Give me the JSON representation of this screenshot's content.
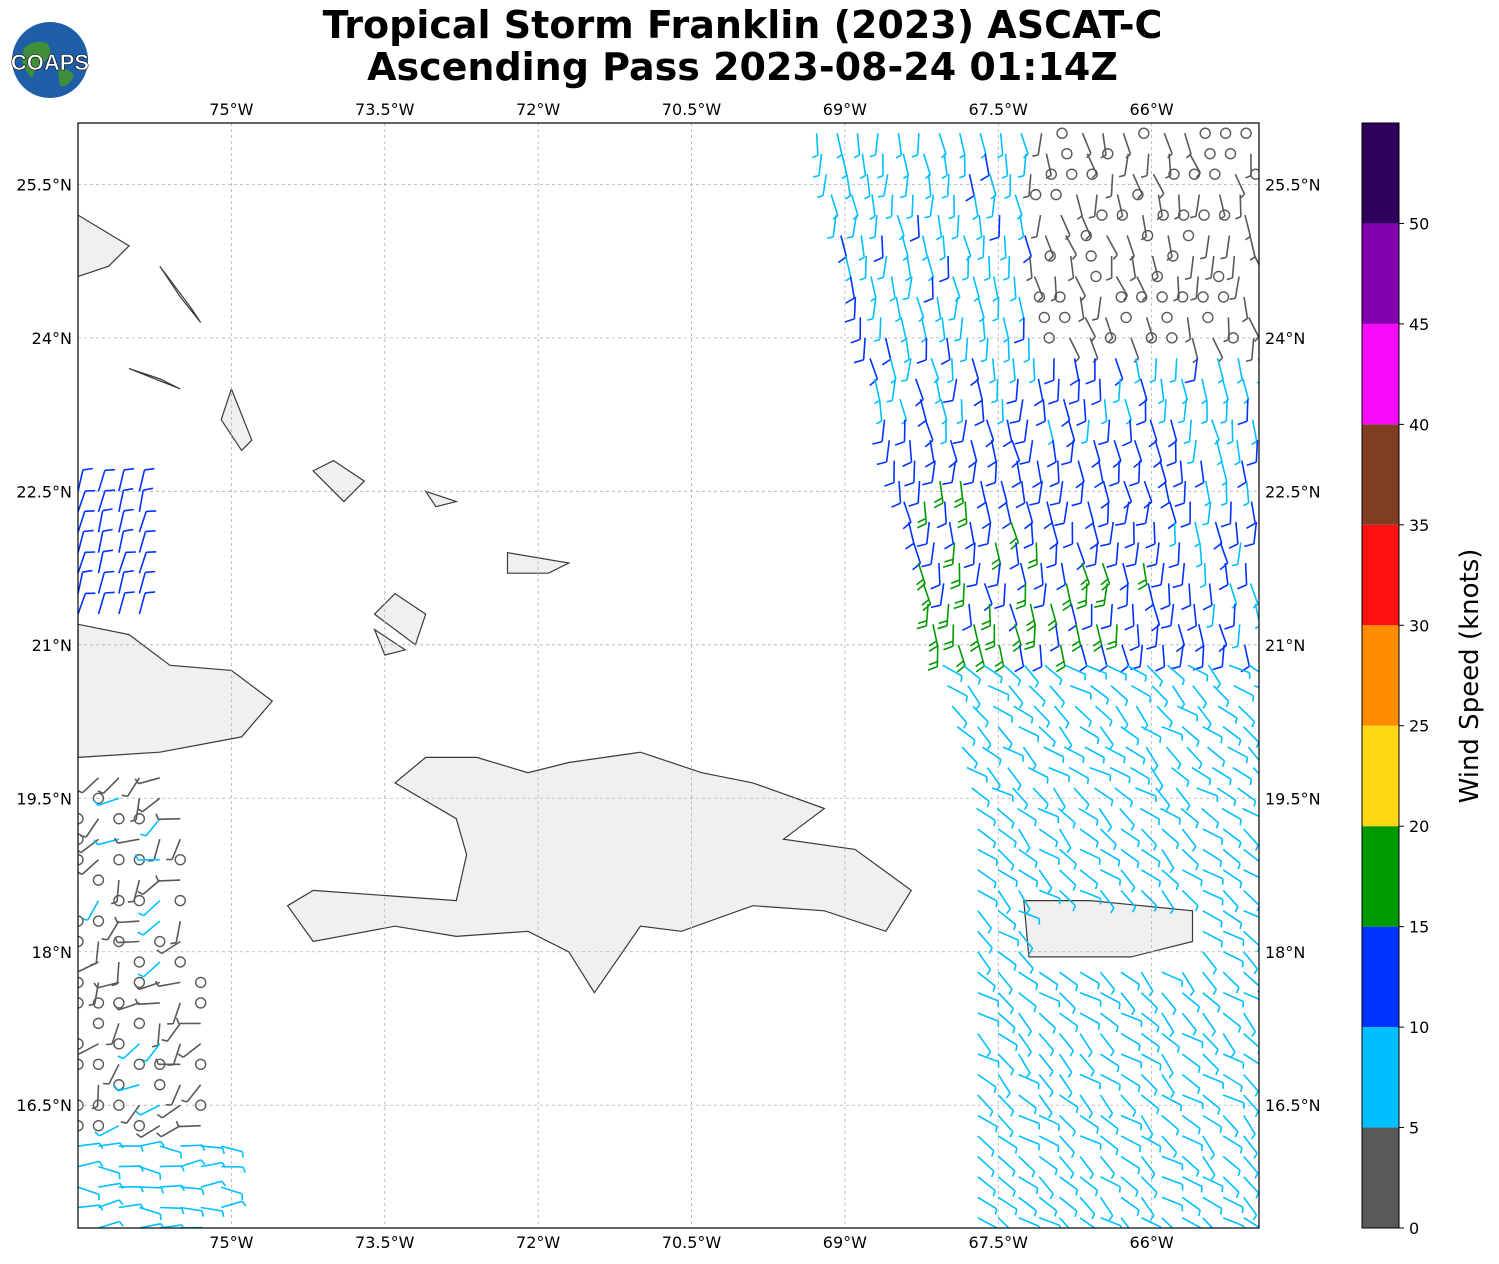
{
  "title": {
    "line1": "Tropical Storm Franklin (2023) ASCAT-C",
    "line2": "Ascending Pass 2023-08-24 01:14Z"
  },
  "logo": {
    "text": "COAPS"
  },
  "map": {
    "lon_range": [
      -76.5,
      -64.95
    ],
    "lat_range": [
      15.3,
      26.1
    ],
    "lon_ticks": [
      {
        "value": -75.0,
        "label": "75°W"
      },
      {
        "value": -73.5,
        "label": "73.5°W"
      },
      {
        "value": -72.0,
        "label": "72°W"
      },
      {
        "value": -70.5,
        "label": "70.5°W"
      },
      {
        "value": -69.0,
        "label": "69°W"
      },
      {
        "value": -67.5,
        "label": "67.5°W"
      },
      {
        "value": -66.0,
        "label": "66°W"
      }
    ],
    "lat_ticks": [
      {
        "value": 25.5,
        "label": "25.5°N"
      },
      {
        "value": 24.0,
        "label": "24°N"
      },
      {
        "value": 22.5,
        "label": "22.5°N"
      },
      {
        "value": 21.0,
        "label": "21°N"
      },
      {
        "value": 19.5,
        "label": "19.5°N"
      },
      {
        "value": 18.0,
        "label": "18°N"
      },
      {
        "value": 16.5,
        "label": "16.5°N"
      }
    ],
    "gridlines": true,
    "land": [
      {
        "name": "cuba-east",
        "pts": [
          [
            -76.5,
            21.2
          ],
          [
            -76.0,
            21.1
          ],
          [
            -75.6,
            20.8
          ],
          [
            -75.0,
            20.75
          ],
          [
            -74.6,
            20.45
          ],
          [
            -74.9,
            20.1
          ],
          [
            -75.7,
            19.95
          ],
          [
            -76.5,
            19.9
          ]
        ]
      },
      {
        "name": "hispaniola",
        "pts": [
          [
            -74.45,
            18.45
          ],
          [
            -74.2,
            18.6
          ],
          [
            -73.5,
            18.55
          ],
          [
            -72.8,
            18.5
          ],
          [
            -72.7,
            18.95
          ],
          [
            -72.8,
            19.3
          ],
          [
            -73.4,
            19.65
          ],
          [
            -73.1,
            19.9
          ],
          [
            -72.6,
            19.9
          ],
          [
            -72.1,
            19.75
          ],
          [
            -71.7,
            19.85
          ],
          [
            -71.0,
            19.95
          ],
          [
            -70.4,
            19.75
          ],
          [
            -69.9,
            19.65
          ],
          [
            -69.2,
            19.4
          ],
          [
            -69.6,
            19.1
          ],
          [
            -68.9,
            19.0
          ],
          [
            -68.35,
            18.6
          ],
          [
            -68.6,
            18.2
          ],
          [
            -69.2,
            18.4
          ],
          [
            -69.9,
            18.45
          ],
          [
            -70.6,
            18.2
          ],
          [
            -71.0,
            18.25
          ],
          [
            -71.45,
            17.6
          ],
          [
            -71.7,
            18.0
          ],
          [
            -72.1,
            18.2
          ],
          [
            -72.8,
            18.15
          ],
          [
            -73.4,
            18.25
          ],
          [
            -74.2,
            18.1
          ]
        ]
      },
      {
        "name": "puerto-rico",
        "pts": [
          [
            -67.25,
            18.5
          ],
          [
            -66.6,
            18.5
          ],
          [
            -65.6,
            18.4
          ],
          [
            -65.6,
            18.1
          ],
          [
            -66.2,
            17.95
          ],
          [
            -67.2,
            17.95
          ]
        ]
      }
    ],
    "islands": [
      {
        "name": "andros",
        "pts": [
          [
            -76.5,
            25.2
          ],
          [
            -76.0,
            24.9
          ],
          [
            -76.2,
            24.7
          ],
          [
            -76.5,
            24.6
          ]
        ]
      },
      {
        "name": "eleuthera",
        "pts": [
          [
            -75.7,
            24.7
          ],
          [
            -75.4,
            24.3
          ],
          [
            -75.3,
            24.15
          ],
          [
            -75.5,
            24.4
          ]
        ]
      },
      {
        "name": "exuma",
        "pts": [
          [
            -76.0,
            23.7
          ],
          [
            -75.5,
            23.5
          ],
          [
            -75.7,
            23.6
          ]
        ]
      },
      {
        "name": "long-island",
        "pts": [
          [
            -75.0,
            23.5
          ],
          [
            -74.8,
            23.0
          ],
          [
            -74.9,
            22.9
          ],
          [
            -75.1,
            23.2
          ]
        ]
      },
      {
        "name": "acklins",
        "pts": [
          [
            -74.0,
            22.8
          ],
          [
            -73.7,
            22.6
          ],
          [
            -73.9,
            22.4
          ],
          [
            -74.2,
            22.7
          ]
        ]
      },
      {
        "name": "inagua",
        "pts": [
          [
            -73.6,
            21.3
          ],
          [
            -73.2,
            21.0
          ],
          [
            -73.1,
            21.3
          ],
          [
            -73.4,
            21.5
          ]
        ]
      },
      {
        "name": "caicos",
        "pts": [
          [
            -72.3,
            21.9
          ],
          [
            -71.7,
            21.8
          ],
          [
            -71.9,
            21.7
          ],
          [
            -72.3,
            21.7
          ]
        ]
      },
      {
        "name": "mayaguana",
        "pts": [
          [
            -73.1,
            22.5
          ],
          [
            -72.8,
            22.4
          ],
          [
            -73.0,
            22.35
          ]
        ]
      },
      {
        "name": "great-inagua-w",
        "pts": [
          [
            -73.6,
            21.15
          ],
          [
            -73.3,
            20.95
          ],
          [
            -73.5,
            20.9
          ]
        ]
      }
    ]
  },
  "colorbar": {
    "label": "Wind Speed (knots)",
    "bins": [
      {
        "min": 0,
        "max": 5,
        "color": "#595959"
      },
      {
        "min": 5,
        "max": 10,
        "color": "#00bfff"
      },
      {
        "min": 10,
        "max": 15,
        "color": "#0033ff"
      },
      {
        "min": 15,
        "max": 20,
        "color": "#009900"
      },
      {
        "min": 20,
        "max": 25,
        "color": "#ffd712"
      },
      {
        "min": 25,
        "max": 30,
        "color": "#ff8c00"
      },
      {
        "min": 30,
        "max": 35,
        "color": "#ff1010"
      },
      {
        "min": 35,
        "max": 40,
        "color": "#803d22"
      },
      {
        "min": 40,
        "max": 45,
        "color": "#f70af7"
      },
      {
        "min": 45,
        "max": 50,
        "color": "#8300b0"
      },
      {
        "min": 50,
        "max": 55,
        "color": "#2e005c"
      }
    ],
    "tick_labels": [
      "0",
      "5",
      "10",
      "15",
      "20",
      "25",
      "30",
      "35",
      "40",
      "45",
      "50"
    ]
  },
  "wind_swaths": [
    {
      "name": "east-swath",
      "lon_west_north": -69.3,
      "lon_west_south": -67.7,
      "lon_east": -64.95,
      "lat_min": 15.3,
      "lat_max": 26.1
    },
    {
      "name": "west-swath",
      "lon_west": -76.5,
      "lon_east_north": -75.9,
      "lon_east_south": -75.0,
      "lat_min": 15.3,
      "lat_max": 22.6
    }
  ]
}
